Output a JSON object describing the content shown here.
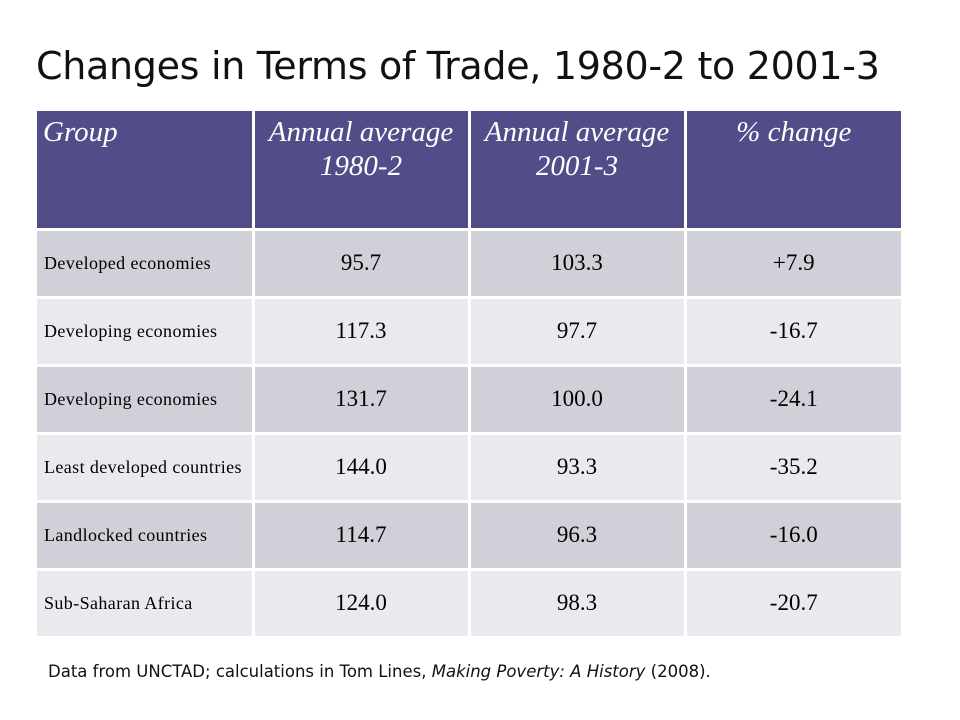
{
  "title": "Changes in Terms of Trade, 1980-2 to 2001-3",
  "table": {
    "headers": [
      "Group",
      "Annual average 1980-2",
      "Annual average 2001-3",
      "% change"
    ],
    "rows": [
      [
        "Developed economies",
        "95.7",
        "103.3",
        "+7.9"
      ],
      [
        "Developing economies",
        "117.3",
        "97.7",
        "-16.7"
      ],
      [
        "Developing economies",
        "131.7",
        "100.0",
        "-24.1"
      ],
      [
        "Least developed countries",
        "144.0",
        "93.3",
        "-35.2"
      ],
      [
        "Landlocked countries",
        "114.7",
        "96.3",
        "-16.0"
      ],
      [
        "Sub-Saharan Africa",
        "124.0",
        "98.3",
        "-20.7"
      ]
    ]
  },
  "footnote": {
    "prefix": "Data from UNCTAD; calculations in Tom Lines, ",
    "book": "Making Poverty: A History",
    "suffix": " (2008)."
  },
  "colors": {
    "header_bg": "#514d89",
    "row_dark": "#cfd0d8",
    "row_light": "#e9e9ee"
  }
}
